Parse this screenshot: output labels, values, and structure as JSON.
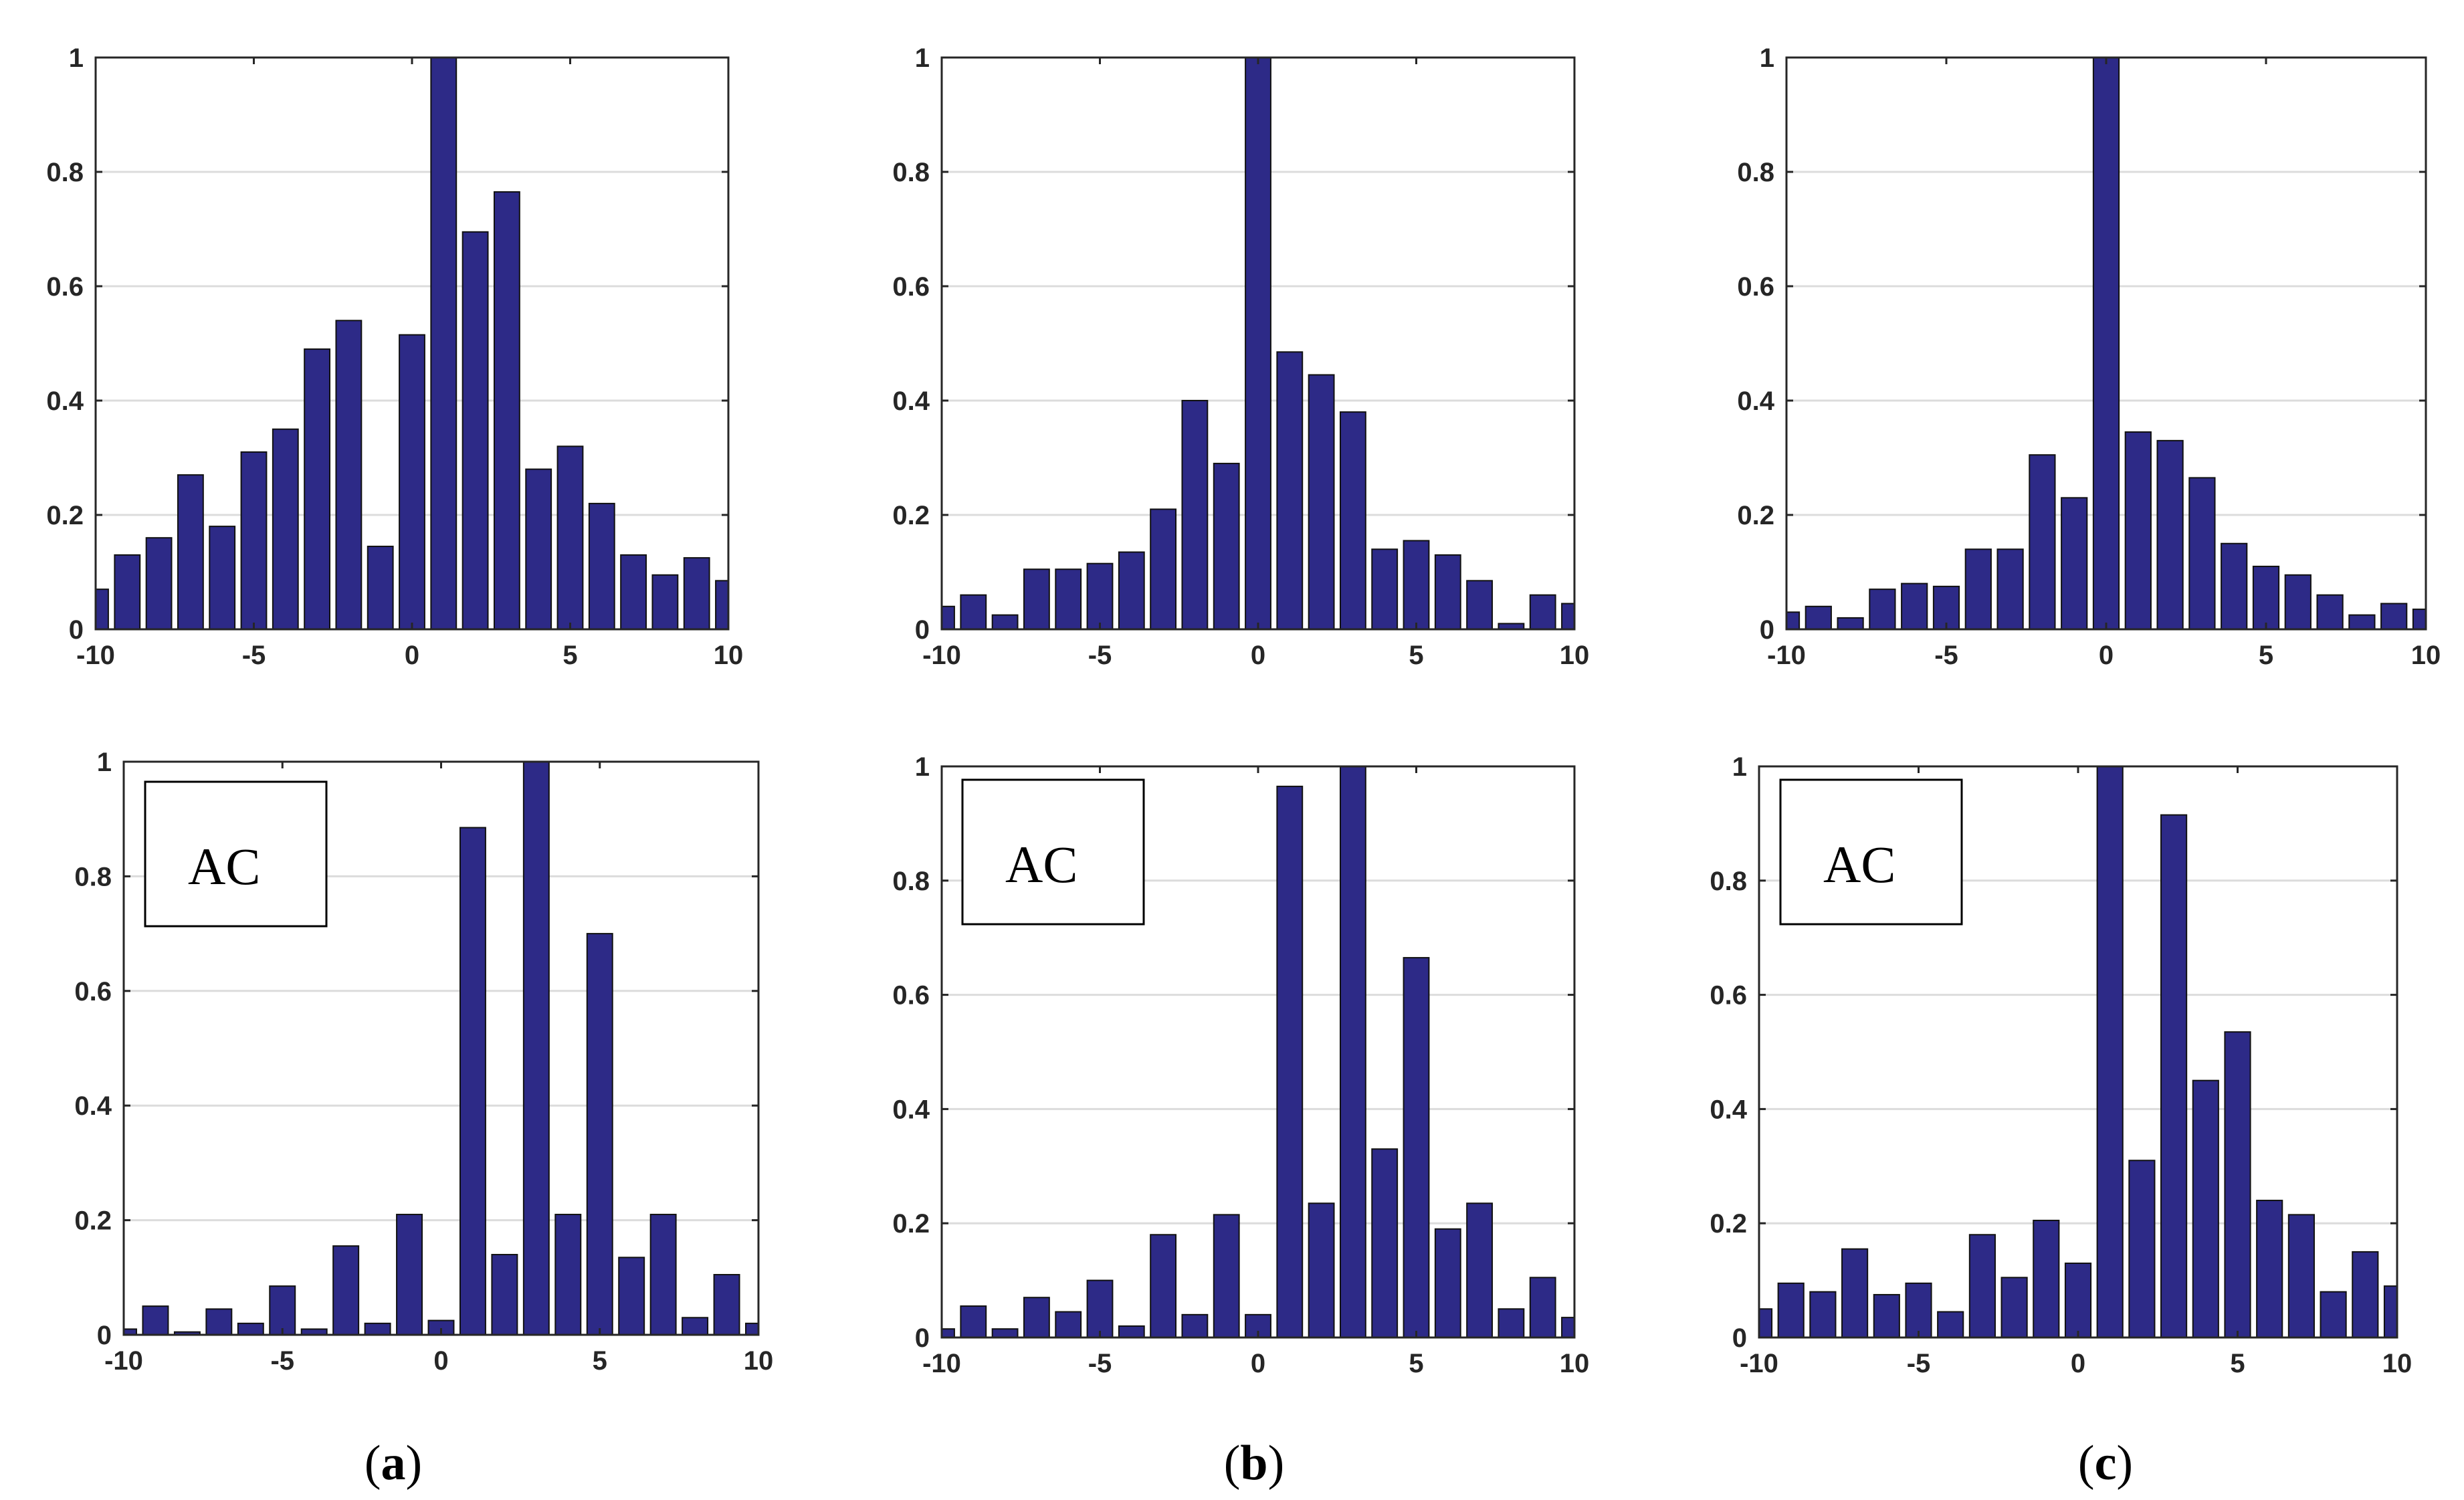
{
  "chart_data": [
    {
      "type": "bar",
      "row": "top",
      "column": "a",
      "legend": null,
      "x": [
        -10,
        -9,
        -8,
        -7,
        -6,
        -5,
        -4,
        -3,
        -2,
        -1,
        0,
        1,
        2,
        3,
        4,
        5,
        6,
        7,
        8,
        9,
        10
      ],
      "values": [
        0.07,
        0.13,
        0.16,
        0.27,
        0.18,
        0.31,
        0.35,
        0.49,
        0.54,
        0.145,
        0.515,
        1.0,
        0.695,
        0.765,
        0.28,
        0.32,
        0.22,
        0.13,
        0.095,
        0.125,
        0.085
      ],
      "xlim": [
        -10,
        10
      ],
      "ylim": [
        0,
        1
      ],
      "xticks": [
        -10,
        -5,
        0,
        5,
        10
      ],
      "xtick_labels": [
        "-10",
        "-5",
        "0",
        "5",
        "10"
      ],
      "yticks": [
        0,
        0.2,
        0.4,
        0.6,
        0.8,
        1
      ],
      "ytick_labels": [
        "0",
        "0.2",
        "0.4",
        "0.6",
        "0.8",
        "1"
      ]
    },
    {
      "type": "bar",
      "row": "top",
      "column": "b",
      "legend": null,
      "x": [
        -10,
        -9,
        -8,
        -7,
        -6,
        -5,
        -4,
        -3,
        -2,
        -1,
        0,
        1,
        2,
        3,
        4,
        5,
        6,
        7,
        8,
        9,
        10
      ],
      "values": [
        0.04,
        0.06,
        0.025,
        0.105,
        0.105,
        0.115,
        0.135,
        0.21,
        0.4,
        0.29,
        1.0,
        0.485,
        0.445,
        0.38,
        0.14,
        0.155,
        0.13,
        0.085,
        0.01,
        0.06,
        0.045
      ],
      "xlim": [
        -10,
        10
      ],
      "ylim": [
        0,
        1
      ],
      "xticks": [
        -10,
        -5,
        0,
        5,
        10
      ],
      "xtick_labels": [
        "-10",
        "-5",
        "0",
        "5",
        "10"
      ],
      "yticks": [
        0,
        0.2,
        0.4,
        0.6,
        0.8,
        1
      ],
      "ytick_labels": [
        "0",
        "0.2",
        "0.4",
        "0.6",
        "0.8",
        "1"
      ]
    },
    {
      "type": "bar",
      "row": "top",
      "column": "c",
      "legend": null,
      "x": [
        -10,
        -9,
        -8,
        -7,
        -6,
        -5,
        -4,
        -3,
        -2,
        -1,
        0,
        1,
        2,
        3,
        4,
        5,
        6,
        7,
        8,
        9,
        10
      ],
      "values": [
        0.03,
        0.04,
        0.02,
        0.07,
        0.08,
        0.075,
        0.14,
        0.14,
        0.305,
        0.23,
        1.0,
        0.345,
        0.33,
        0.265,
        0.15,
        0.11,
        0.095,
        0.06,
        0.025,
        0.045,
        0.035
      ],
      "xlim": [
        -10,
        10
      ],
      "ylim": [
        0,
        1
      ],
      "xticks": [
        -10,
        -5,
        0,
        5,
        10
      ],
      "xtick_labels": [
        "-10",
        "-5",
        "0",
        "5",
        "10"
      ],
      "yticks": [
        0,
        0.2,
        0.4,
        0.6,
        0.8,
        1
      ],
      "ytick_labels": [
        "0",
        "0.2",
        "0.4",
        "0.6",
        "0.8",
        "1"
      ]
    },
    {
      "type": "bar",
      "row": "bottom",
      "column": "a",
      "legend": "AC",
      "x": [
        -10,
        -9,
        -8,
        -7,
        -6,
        -5,
        -4,
        -3,
        -2,
        -1,
        0,
        1,
        2,
        3,
        4,
        5,
        6,
        7,
        8,
        9,
        10
      ],
      "values": [
        0.01,
        0.05,
        0.005,
        0.045,
        0.02,
        0.085,
        0.01,
        0.155,
        0.02,
        0.21,
        0.025,
        0.885,
        0.14,
        1.0,
        0.21,
        0.7,
        0.135,
        0.21,
        0.03,
        0.105,
        0.02
      ],
      "xlim": [
        -10,
        10
      ],
      "ylim": [
        0,
        1
      ],
      "xticks": [
        -10,
        -5,
        0,
        5,
        10
      ],
      "xtick_labels": [
        "-10",
        "-5",
        "0",
        "5",
        "10"
      ],
      "yticks": [
        0,
        0.2,
        0.4,
        0.6,
        0.8,
        1
      ],
      "ytick_labels": [
        "0",
        "0.2",
        "0.4",
        "0.6",
        "0.8",
        "1"
      ]
    },
    {
      "type": "bar",
      "row": "bottom",
      "column": "b",
      "legend": "AC",
      "x": [
        -10,
        -9,
        -8,
        -7,
        -6,
        -5,
        -4,
        -3,
        -2,
        -1,
        0,
        1,
        2,
        3,
        4,
        5,
        6,
        7,
        8,
        9,
        10
      ],
      "values": [
        0.015,
        0.055,
        0.015,
        0.07,
        0.045,
        0.1,
        0.02,
        0.18,
        0.04,
        0.215,
        0.04,
        0.965,
        0.235,
        1.0,
        0.33,
        0.665,
        0.19,
        0.235,
        0.05,
        0.105,
        0.035
      ],
      "xlim": [
        -10,
        10
      ],
      "ylim": [
        0,
        1
      ],
      "xticks": [
        -10,
        -5,
        0,
        5,
        10
      ],
      "xtick_labels": [
        "-10",
        "-5",
        "0",
        "5",
        "10"
      ],
      "yticks": [
        0,
        0.2,
        0.4,
        0.6,
        0.8,
        1
      ],
      "ytick_labels": [
        "0",
        "0.2",
        "0.4",
        "0.6",
        "0.8",
        "1"
      ]
    },
    {
      "type": "bar",
      "row": "bottom",
      "column": "c",
      "legend": "AC",
      "x": [
        -10,
        -9,
        -8,
        -7,
        -6,
        -5,
        -4,
        -3,
        -2,
        -1,
        0,
        1,
        2,
        3,
        4,
        5,
        6,
        7,
        8,
        9,
        10
      ],
      "values": [
        0.05,
        0.095,
        0.08,
        0.155,
        0.075,
        0.095,
        0.045,
        0.18,
        0.105,
        0.205,
        0.13,
        1.0,
        0.31,
        0.915,
        0.45,
        0.535,
        0.24,
        0.215,
        0.08,
        0.15,
        0.09
      ],
      "xlim": [
        -10,
        10
      ],
      "ylim": [
        0,
        1
      ],
      "xticks": [
        -10,
        -5,
        0,
        5,
        10
      ],
      "xtick_labels": [
        "-10",
        "-5",
        "0",
        "5",
        "10"
      ],
      "yticks": [
        0,
        0.2,
        0.4,
        0.6,
        0.8,
        1
      ],
      "ytick_labels": [
        "0",
        "0.2",
        "0.4",
        "0.6",
        "0.8",
        "1"
      ]
    }
  ],
  "panel_labels": [
    {
      "open": "(",
      "letter": "a",
      "close": ")"
    },
    {
      "open": "(",
      "letter": "b",
      "close": ")"
    },
    {
      "open": "(",
      "letter": "c",
      "close": ")"
    }
  ],
  "colors": {
    "bar_fill": "#2d2a87",
    "bar_edge": "#111111",
    "grid": "#dcdcdc",
    "axis": "#262626"
  }
}
